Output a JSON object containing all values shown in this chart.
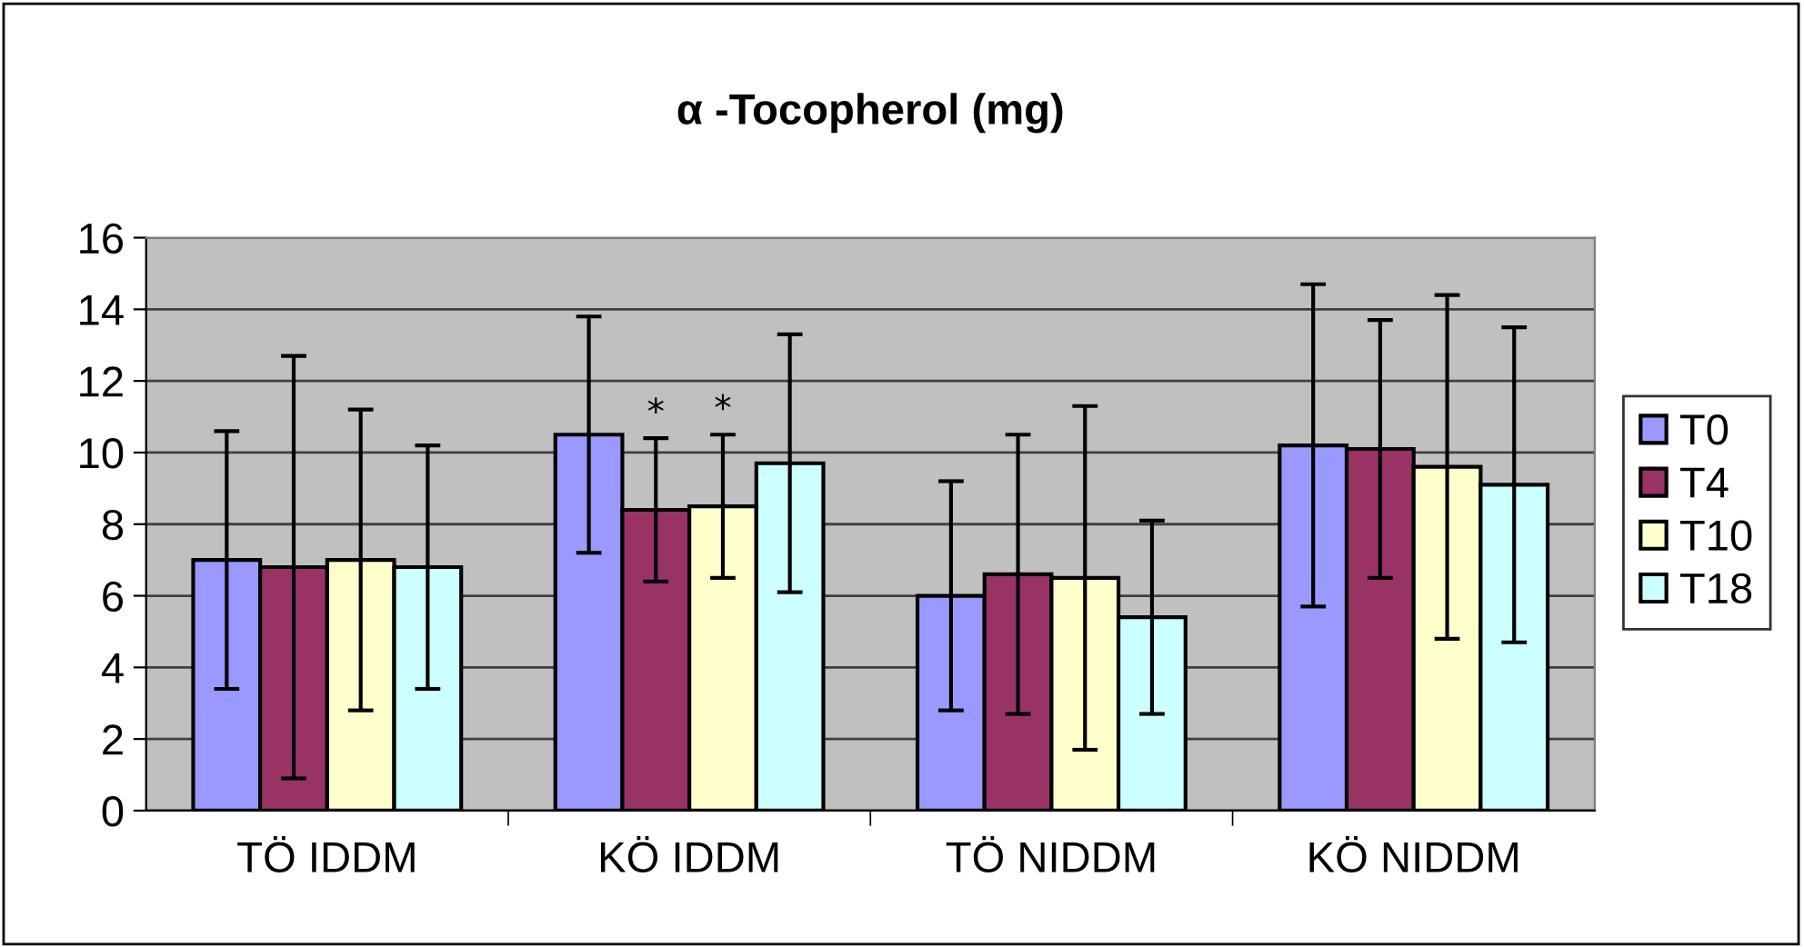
{
  "chart_data": {
    "type": "bar",
    "title": "α -Tocopherol (mg)",
    "categories": [
      "TÖ IDDM",
      "KÖ IDDM",
      "TÖ NIDDM",
      "KÖ NIDDM"
    ],
    "series": [
      {
        "name": "T0",
        "color": "#9999ff",
        "values": [
          7.0,
          10.5,
          6.0,
          10.2
        ],
        "errors": [
          3.6,
          3.3,
          3.2,
          4.5
        ]
      },
      {
        "name": "T4",
        "color": "#993366",
        "values": [
          6.8,
          8.4,
          6.6,
          10.1
        ],
        "errors": [
          5.9,
          2.0,
          3.9,
          3.6
        ],
        "value_labels": [
          null,
          "*",
          null,
          null
        ]
      },
      {
        "name": "T10",
        "color": "#ffffcc",
        "values": [
          7.0,
          8.5,
          6.5,
          9.6
        ],
        "errors": [
          4.2,
          2.0,
          4.8,
          4.8
        ],
        "value_labels": [
          null,
          "*",
          null,
          null
        ]
      },
      {
        "name": "T18",
        "color": "#ccffff",
        "values": [
          6.8,
          9.7,
          5.4,
          9.1
        ],
        "errors": [
          3.4,
          3.6,
          2.7,
          4.4
        ]
      }
    ],
    "ylim": [
      0,
      16
    ],
    "yticks": [
      0,
      2,
      4,
      6,
      8,
      10,
      12,
      14,
      16
    ],
    "grid": "y",
    "legend": "right"
  }
}
